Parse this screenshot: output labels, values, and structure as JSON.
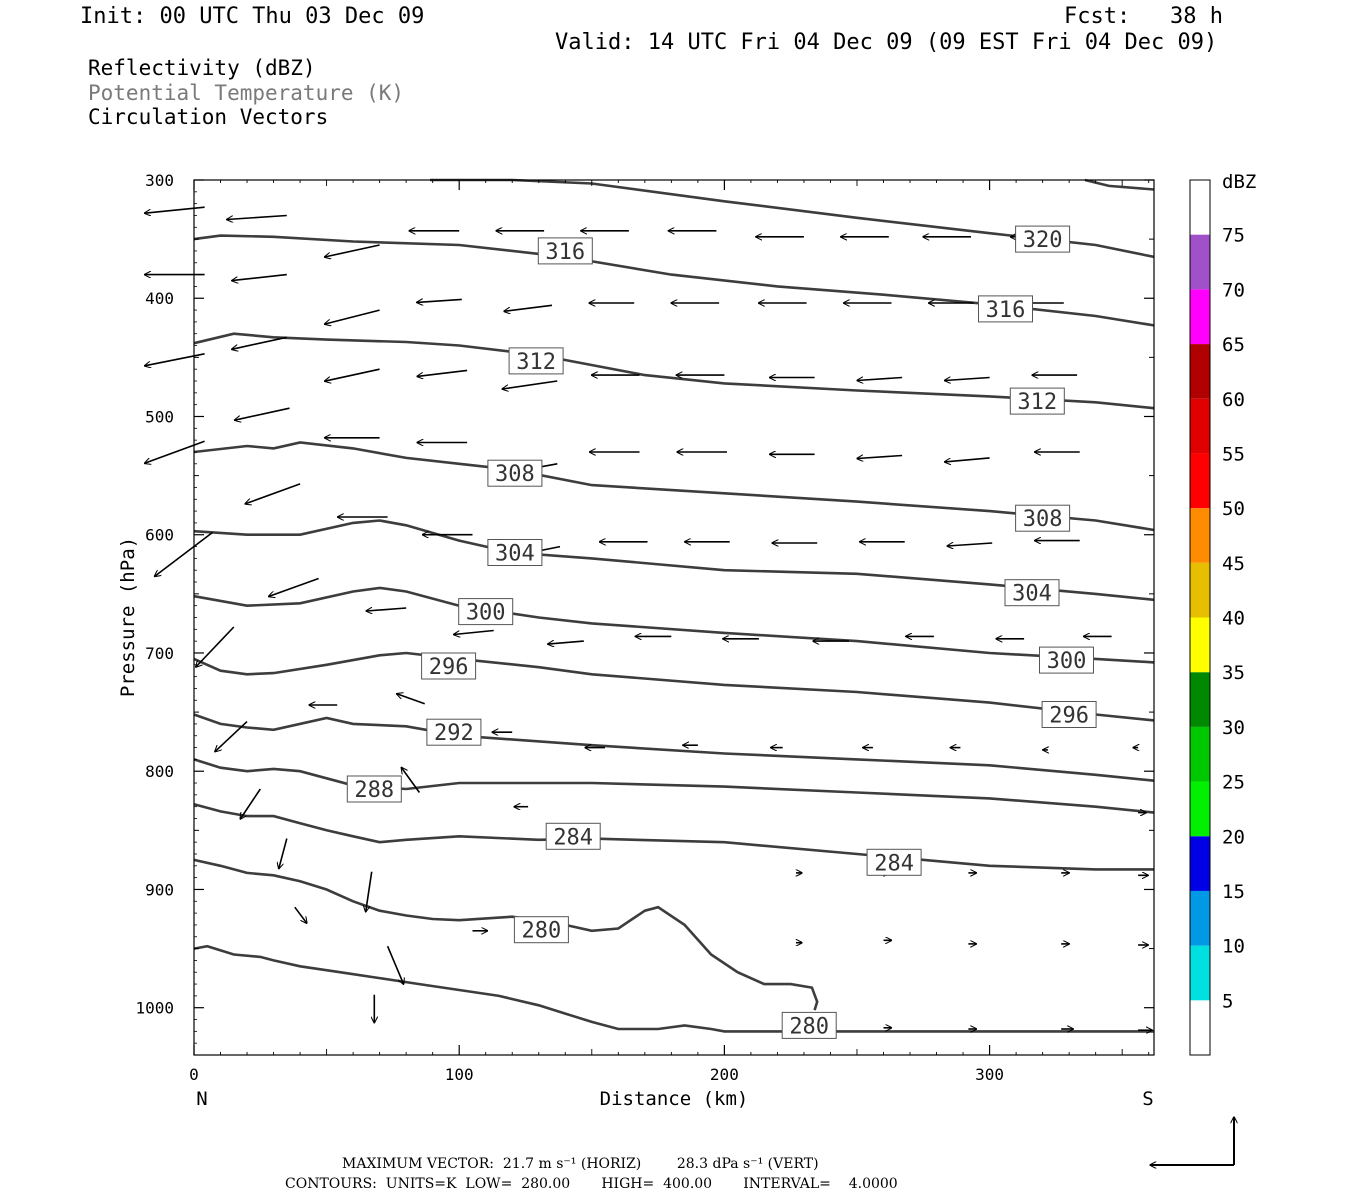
{
  "header": {
    "init": "Init: 00 UTC Thu 03 Dec 09",
    "fcst": "Fcst:   38 h",
    "valid": "Valid: 14 UTC Fri 04 Dec 09 (09 EST Fri 04 Dec 09)"
  },
  "legend": {
    "line1": "Reflectivity (dBZ)",
    "line2": "Potential Temperature (K)",
    "line3": "Circulation Vectors"
  },
  "footer": {
    "max_vector": "MAXIMUM VECTOR:  21.7 m s⁻¹ (HORIZ)        28.3 dPa s⁻¹ (VERT)",
    "contours": "CONTOURS:  UNITS=K  LOW=  280.00       HIGH=  400.00       INTERVAL=    4.0000"
  },
  "colors": {
    "contour": "#3d3d3d",
    "arrow": "#000000",
    "frame": "#000000"
  },
  "chart_data": {
    "type": "line",
    "title": "",
    "xlabel": "Distance (km)",
    "ylabel": "Pressure (hPa)",
    "xlim": [
      0,
      362
    ],
    "ylim": [
      1040,
      300
    ],
    "x_ticks": [
      0,
      100,
      200,
      300
    ],
    "y_ticks": [
      300,
      400,
      500,
      600,
      700,
      800,
      900,
      1000
    ],
    "x_endpoint_labels": [
      "N",
      "S"
    ],
    "grid": false,
    "contour_units": "K",
    "series": [
      {
        "label_text": "320",
        "label_pos": [
          320,
          350
        ],
        "x": [
          89,
          120,
          150,
          200,
          250,
          300,
          340,
          362
        ],
        "y": [
          300,
          300,
          303,
          318,
          332,
          345,
          355,
          365
        ]
      },
      {
        "label_text": "316",
        "label_pos": [
          140,
          360
        ],
        "x": [
          0,
          10,
          30,
          60,
          100,
          140,
          180,
          220,
          260,
          300,
          340,
          362
        ],
        "y": [
          350,
          347,
          348,
          352,
          355,
          365,
          380,
          390,
          397,
          405,
          415,
          423
        ]
      },
      {
        "label_text": "316",
        "label_pos": [
          306,
          409
        ],
        "x": [
          336,
          345,
          362
        ],
        "y": [
          300,
          305,
          308
        ]
      },
      {
        "label_text": "312",
        "label_pos": [
          129,
          453
        ],
        "x": [
          0,
          15,
          30,
          50,
          80,
          100,
          130,
          170,
          200,
          250,
          300,
          340,
          362
        ],
        "y": [
          438,
          430,
          433,
          435,
          437,
          440,
          448,
          465,
          472,
          478,
          483,
          488,
          493
        ]
      },
      {
        "label_text": "312",
        "label_pos": [
          318,
          487
        ],
        "x": [
          362
        ],
        "y": [
          493
        ]
      },
      {
        "label_text": "308",
        "label_pos": [
          121,
          548
        ],
        "x": [
          0,
          20,
          30,
          40,
          60,
          80,
          100,
          120,
          150,
          200,
          250,
          300,
          340,
          362
        ],
        "y": [
          530,
          525,
          527,
          522,
          527,
          535,
          540,
          545,
          558,
          565,
          572,
          580,
          588,
          596
        ]
      },
      {
        "label_text": "308",
        "label_pos": [
          320,
          586
        ],
        "x": [
          362
        ],
        "y": [
          596
        ]
      },
      {
        "label_text": "304",
        "label_pos": [
          121,
          615
        ],
        "x": [
          0,
          20,
          40,
          60,
          70,
          80,
          100,
          120,
          150,
          200,
          250,
          300,
          340,
          362
        ],
        "y": [
          597,
          600,
          600,
          590,
          588,
          592,
          605,
          615,
          620,
          630,
          633,
          642,
          650,
          655
        ]
      },
      {
        "label_text": "304",
        "label_pos": [
          316,
          649
        ],
        "x": [
          362
        ],
        "y": [
          655
        ]
      },
      {
        "label_text": "300",
        "label_pos": [
          110,
          665
        ],
        "x": [
          0,
          20,
          40,
          60,
          70,
          80,
          100,
          130,
          150,
          200,
          250,
          300,
          340,
          362
        ],
        "y": [
          652,
          660,
          658,
          648,
          645,
          648,
          660,
          670,
          675,
          683,
          690,
          700,
          705,
          708
        ]
      },
      {
        "label_text": "300",
        "label_pos": [
          329,
          706
        ],
        "x": [
          362
        ],
        "y": [
          708
        ]
      },
      {
        "label_text": "296",
        "label_pos": [
          96,
          711
        ],
        "x": [
          0,
          10,
          20,
          30,
          50,
          70,
          80,
          100,
          130,
          150,
          200,
          250,
          300,
          340,
          362
        ],
        "y": [
          705,
          715,
          718,
          717,
          710,
          702,
          700,
          705,
          712,
          718,
          727,
          733,
          742,
          752,
          757
        ]
      },
      {
        "label_text": "296",
        "label_pos": [
          330,
          752
        ],
        "x": [
          362
        ],
        "y": [
          757
        ]
      },
      {
        "label_text": "292",
        "label_pos": [
          98,
          767
        ],
        "x": [
          0,
          10,
          20,
          30,
          50,
          60,
          80,
          100,
          150,
          200,
          250,
          300,
          340,
          362
        ],
        "y": [
          752,
          760,
          763,
          765,
          755,
          760,
          762,
          770,
          778,
          785,
          790,
          795,
          803,
          808
        ]
      },
      {
        "label_text": "288",
        "label_pos": [
          68,
          815
        ],
        "x": [
          0,
          10,
          20,
          30,
          40,
          60,
          80,
          100,
          150,
          200,
          250,
          300,
          340,
          362
        ],
        "y": [
          790,
          797,
          800,
          798,
          800,
          812,
          815,
          810,
          810,
          813,
          818,
          823,
          830,
          835
        ]
      },
      {
        "label_text": "284",
        "label_pos": [
          143,
          855
        ],
        "x": [
          0,
          10,
          20,
          30,
          40,
          50,
          60,
          70,
          80,
          100,
          130,
          150,
          200,
          250,
          300,
          340,
          362
        ],
        "y": [
          828,
          834,
          838,
          838,
          844,
          850,
          855,
          860,
          858,
          855,
          858,
          857,
          860,
          870,
          880,
          883,
          883
        ]
      },
      {
        "label_text": "284",
        "label_pos": [
          264,
          877
        ],
        "x": [
          362
        ],
        "y": [
          883
        ]
      },
      {
        "label_text": "280",
        "label_pos": [
          131,
          934
        ],
        "x": [
          0,
          10,
          20,
          30,
          40,
          50,
          60,
          70,
          80,
          90,
          100,
          120,
          140,
          150,
          160,
          170,
          175,
          185,
          195,
          205,
          215,
          225,
          233,
          235,
          234
        ],
        "y": [
          875,
          880,
          886,
          888,
          893,
          900,
          910,
          918,
          922,
          925,
          926,
          923,
          930,
          935,
          933,
          918,
          915,
          930,
          955,
          970,
          980,
          980,
          983,
          995,
          1002
        ]
      },
      {
        "label_text": "280",
        "label_pos": [
          232,
          1015
        ],
        "x": [
          0,
          5,
          15,
          25,
          30,
          40,
          55,
          70,
          85,
          100,
          115,
          130,
          140,
          150,
          160,
          175,
          185,
          195,
          200,
          250,
          300,
          362
        ],
        "y": [
          950,
          948,
          955,
          957,
          960,
          965,
          970,
          975,
          980,
          985,
          990,
          998,
          1005,
          1012,
          1018,
          1018,
          1015,
          1018,
          1020,
          1020,
          1020,
          1020
        ]
      }
    ],
    "vectors": [
      {
        "x": 4,
        "p": 323,
        "u": -60,
        "v": 6
      },
      {
        "x": 35,
        "p": 330,
        "u": -60,
        "v": 4
      },
      {
        "x": 70,
        "p": 355,
        "u": -55,
        "v": 12
      },
      {
        "x": 100,
        "p": 343,
        "u": -50,
        "v": 0
      },
      {
        "x": 132,
        "p": 343,
        "u": -48,
        "v": 0
      },
      {
        "x": 164,
        "p": 343,
        "u": -48,
        "v": 0
      },
      {
        "x": 197,
        "p": 343,
        "u": -48,
        "v": 0
      },
      {
        "x": 230,
        "p": 348,
        "u": -48,
        "v": 0
      },
      {
        "x": 262,
        "p": 348,
        "u": -48,
        "v": 0
      },
      {
        "x": 293,
        "p": 348,
        "u": -48,
        "v": 0
      },
      {
        "x": 326,
        "p": 348,
        "u": -48,
        "v": 0
      },
      {
        "x": 4,
        "p": 380,
        "u": -60,
        "v": 0
      },
      {
        "x": 35,
        "p": 380,
        "u": -55,
        "v": 6
      },
      {
        "x": 70,
        "p": 410,
        "u": -55,
        "v": 14
      },
      {
        "x": 101,
        "p": 401,
        "u": -45,
        "v": 3
      },
      {
        "x": 135,
        "p": 406,
        "u": -48,
        "v": 6
      },
      {
        "x": 166,
        "p": 404,
        "u": -45,
        "v": 0
      },
      {
        "x": 198,
        "p": 404,
        "u": -48,
        "v": 0
      },
      {
        "x": 231,
        "p": 404,
        "u": -48,
        "v": 0
      },
      {
        "x": 263,
        "p": 404,
        "u": -48,
        "v": 0
      },
      {
        "x": 294,
        "p": 404,
        "u": -45,
        "v": 0
      },
      {
        "x": 328,
        "p": 404,
        "u": -45,
        "v": 0
      },
      {
        "x": 4,
        "p": 447,
        "u": -60,
        "v": 12
      },
      {
        "x": 35,
        "p": 433,
        "u": -55,
        "v": 12
      },
      {
        "x": 70,
        "p": 460,
        "u": -55,
        "v": 12
      },
      {
        "x": 103,
        "p": 461,
        "u": -50,
        "v": 6
      },
      {
        "x": 137,
        "p": 470,
        "u": -55,
        "v": 8
      },
      {
        "x": 168,
        "p": 465,
        "u": -48,
        "v": 0
      },
      {
        "x": 200,
        "p": 465,
        "u": -48,
        "v": 0
      },
      {
        "x": 234,
        "p": 467,
        "u": -45,
        "v": 0
      },
      {
        "x": 267,
        "p": 467,
        "u": -45,
        "v": 3
      },
      {
        "x": 300,
        "p": 467,
        "u": -45,
        "v": 3
      },
      {
        "x": 333,
        "p": 465,
        "u": -45,
        "v": 0
      },
      {
        "x": 4,
        "p": 521,
        "u": -60,
        "v": 22
      },
      {
        "x": 36,
        "p": 493,
        "u": -55,
        "v": 12
      },
      {
        "x": 70,
        "p": 518,
        "u": -55,
        "v": 0
      },
      {
        "x": 103,
        "p": 522,
        "u": -50,
        "v": 0
      },
      {
        "x": 137,
        "p": 540,
        "u": -55,
        "v": 10
      },
      {
        "x": 168,
        "p": 530,
        "u": -50,
        "v": 0
      },
      {
        "x": 201,
        "p": 530,
        "u": -50,
        "v": 0
      },
      {
        "x": 234,
        "p": 532,
        "u": -45,
        "v": 0
      },
      {
        "x": 267,
        "p": 533,
        "u": -45,
        "v": 3
      },
      {
        "x": 300,
        "p": 535,
        "u": -45,
        "v": 4
      },
      {
        "x": 334,
        "p": 530,
        "u": -45,
        "v": 0
      },
      {
        "x": 7,
        "p": 598,
        "u": -58,
        "v": 44
      },
      {
        "x": 40,
        "p": 557,
        "u": -55,
        "v": 20
      },
      {
        "x": 73,
        "p": 585,
        "u": -50,
        "v": 0
      },
      {
        "x": 105,
        "p": 600,
        "u": -50,
        "v": 0
      },
      {
        "x": 138,
        "p": 610,
        "u": -50,
        "v": 10
      },
      {
        "x": 171,
        "p": 606,
        "u": -48,
        "v": 0
      },
      {
        "x": 202,
        "p": 606,
        "u": -45,
        "v": 0
      },
      {
        "x": 235,
        "p": 607,
        "u": -45,
        "v": 0
      },
      {
        "x": 268,
        "p": 606,
        "u": -45,
        "v": 0
      },
      {
        "x": 301,
        "p": 607,
        "u": -45,
        "v": 3
      },
      {
        "x": 334,
        "p": 605,
        "u": -45,
        "v": 0
      },
      {
        "x": 15,
        "p": 678,
        "u": -38,
        "v": 40
      },
      {
        "x": 47,
        "p": 637,
        "u": -50,
        "v": 18
      },
      {
        "x": 80,
        "p": 662,
        "u": -40,
        "v": 3
      },
      {
        "x": 113,
        "p": 681,
        "u": -40,
        "v": 4
      },
      {
        "x": 147,
        "p": 690,
        "u": -36,
        "v": 3
      },
      {
        "x": 180,
        "p": 686,
        "u": -36,
        "v": 0
      },
      {
        "x": 213,
        "p": 688,
        "u": -36,
        "v": 0
      },
      {
        "x": 247,
        "p": 690,
        "u": -36,
        "v": 0
      },
      {
        "x": 279,
        "p": 686,
        "u": -28,
        "v": 0
      },
      {
        "x": 313,
        "p": 688,
        "u": -28,
        "v": 0
      },
      {
        "x": 346,
        "p": 686,
        "u": -28,
        "v": 0
      },
      {
        "x": 20,
        "p": 758,
        "u": -32,
        "v": 30
      },
      {
        "x": 54,
        "p": 744,
        "u": -28,
        "v": 0
      },
      {
        "x": 87,
        "p": 743,
        "u": -28,
        "v": -10
      },
      {
        "x": 120,
        "p": 767,
        "u": -20,
        "v": 0
      },
      {
        "x": 155,
        "p": 780,
        "u": -20,
        "v": 0
      },
      {
        "x": 190,
        "p": 778,
        "u": -15,
        "v": 0
      },
      {
        "x": 222,
        "p": 780,
        "u": -12,
        "v": 0
      },
      {
        "x": 256,
        "p": 780,
        "u": -10,
        "v": 0
      },
      {
        "x": 289,
        "p": 780,
        "u": -10,
        "v": 0
      },
      {
        "x": 322,
        "p": 782,
        "u": -5,
        "v": 0
      },
      {
        "x": 356,
        "p": 780,
        "u": -5,
        "v": 0
      },
      {
        "x": 25,
        "p": 815,
        "u": -20,
        "v": 30
      },
      {
        "x": 85,
        "p": 818,
        "u": -18,
        "v": -25
      },
      {
        "x": 126,
        "p": 830,
        "u": -14,
        "v": 0
      },
      {
        "x": 35,
        "p": 857,
        "u": -8,
        "v": 30
      },
      {
        "x": 67,
        "p": 885,
        "u": -6,
        "v": 40
      },
      {
        "x": 38,
        "p": 915,
        "u": 12,
        "v": 16
      },
      {
        "x": 73,
        "p": 948,
        "u": 16,
        "v": 38
      },
      {
        "x": 105,
        "p": 935,
        "u": 15,
        "v": 0
      },
      {
        "x": 68,
        "p": 989,
        "u": 0,
        "v": 28
      },
      {
        "x": 356,
        "p": 835,
        "u": 8,
        "v": 0
      },
      {
        "x": 356,
        "p": 888,
        "u": 10,
        "v": 0
      },
      {
        "x": 356,
        "p": 947,
        "u": 10,
        "v": 0
      },
      {
        "x": 356,
        "p": 1019,
        "u": 14,
        "v": 0
      },
      {
        "x": 327,
        "p": 1018,
        "u": 12,
        "v": 0
      },
      {
        "x": 292,
        "p": 1018,
        "u": 8,
        "v": 0
      },
      {
        "x": 260,
        "p": 1017,
        "u": 8,
        "v": 0
      },
      {
        "x": 327,
        "p": 946,
        "u": 8,
        "v": 0
      },
      {
        "x": 292,
        "p": 946,
        "u": 8,
        "v": 0
      },
      {
        "x": 260,
        "p": 943,
        "u": 8,
        "v": 0
      },
      {
        "x": 327,
        "p": 886,
        "u": 8,
        "v": 0
      },
      {
        "x": 292,
        "p": 886,
        "u": 8,
        "v": 0
      },
      {
        "x": 260,
        "p": 886,
        "u": 6,
        "v": 0
      },
      {
        "x": 227,
        "p": 886,
        "u": 6,
        "v": 0
      },
      {
        "x": 227,
        "p": 945,
        "u": 6,
        "v": 0
      }
    ],
    "colorbar": {
      "title": "dBZ",
      "levels": [
        5,
        10,
        15,
        20,
        25,
        30,
        35,
        40,
        45,
        50,
        55,
        60,
        65,
        70,
        75
      ],
      "colors": [
        "#00e0e0",
        "#0099e6",
        "#0000e6",
        "#00f000",
        "#00c800",
        "#008800",
        "#ffff00",
        "#e6c000",
        "#ff8c00",
        "#ff0000",
        "#e00000",
        "#b00000",
        "#ff00ff",
        "#a050c8",
        "#ffffff"
      ]
    }
  }
}
